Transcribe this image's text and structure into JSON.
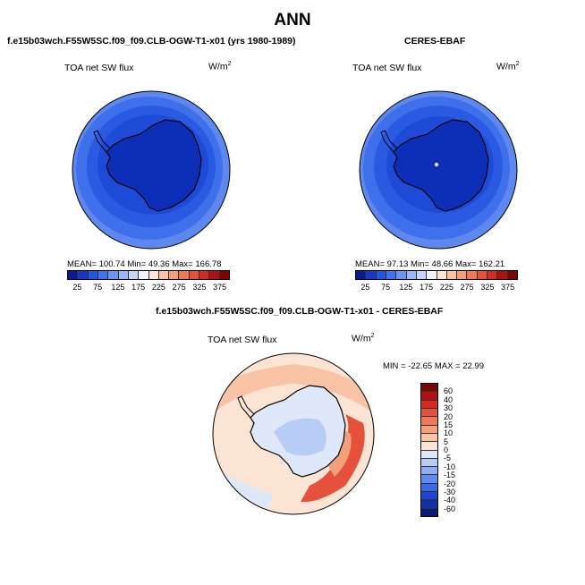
{
  "title": "ANN",
  "panels": [
    {
      "title": "f.e15b03wch.F55W5SC.f09_f09.CLB-OGW-T1-x01 (yrs 1980-1989)",
      "variable": "TOA net SW flux",
      "units_base": "W/m",
      "units_exp": "2",
      "stats": "MEAN= 100.74   Min=  49.36   Max= 166.78"
    },
    {
      "title": "CERES-EBAF",
      "variable": "TOA net SW flux",
      "units_base": "W/m",
      "units_exp": "2",
      "stats": "MEAN=  97.13   Min=  48.66   Max= 162.21"
    },
    {
      "title": "f.e15b03wch.F55W5SC.f09_f09.CLB-OGW-T1-x01 - CERES-EBAF",
      "variable": "TOA net SW flux",
      "units_base": "W/m",
      "units_exp": "2",
      "stats": "MIN = -22.65  MAX =  22.99"
    }
  ],
  "colorbar_abs": {
    "ticks": [
      "25",
      "75",
      "125",
      "175",
      "225",
      "275",
      "325",
      "375"
    ],
    "colors": [
      "#0a1a8c",
      "#1536c8",
      "#2254e6",
      "#3d72f0",
      "#6b95f2",
      "#9ab6f5",
      "#c6d6f8",
      "#eef2fb",
      "#fbe4d4",
      "#f8c4a5",
      "#f3a07a",
      "#ee7a55",
      "#e5513a",
      "#d42c22",
      "#b01010",
      "#7a0606"
    ]
  },
  "colorbar_diff": {
    "ticks": [
      "60",
      "40",
      "30",
      "20",
      "15",
      "10",
      "5",
      "0",
      "-5",
      "-10",
      "-15",
      "-20",
      "-30",
      "-40",
      "-60"
    ],
    "colors": [
      "#7a0606",
      "#b01010",
      "#d42c22",
      "#e5513a",
      "#ee7a55",
      "#f3a07a",
      "#f8c4a5",
      "#fbe4d4",
      "#dfe8f9",
      "#b8cdf6",
      "#8eadf2",
      "#5f8bef",
      "#3a68e8",
      "#1f45d2",
      "#1230a8",
      "#0a1a78"
    ]
  },
  "map_colors": {
    "antarctica_abs": "#0d2fb8",
    "ring1_abs": "#1e4ad8",
    "ring2_abs": "#3f70ec",
    "ring3_abs": "#6a95f2",
    "ocean_outer_abs": "#5f88ee",
    "diff_base": "#fbe4d4",
    "diff_ocean_warm": "#f8c4a5",
    "diff_land": "#dfe8f9",
    "diff_hot": "#e5513a",
    "diff_cool": "#b8cdf6"
  }
}
